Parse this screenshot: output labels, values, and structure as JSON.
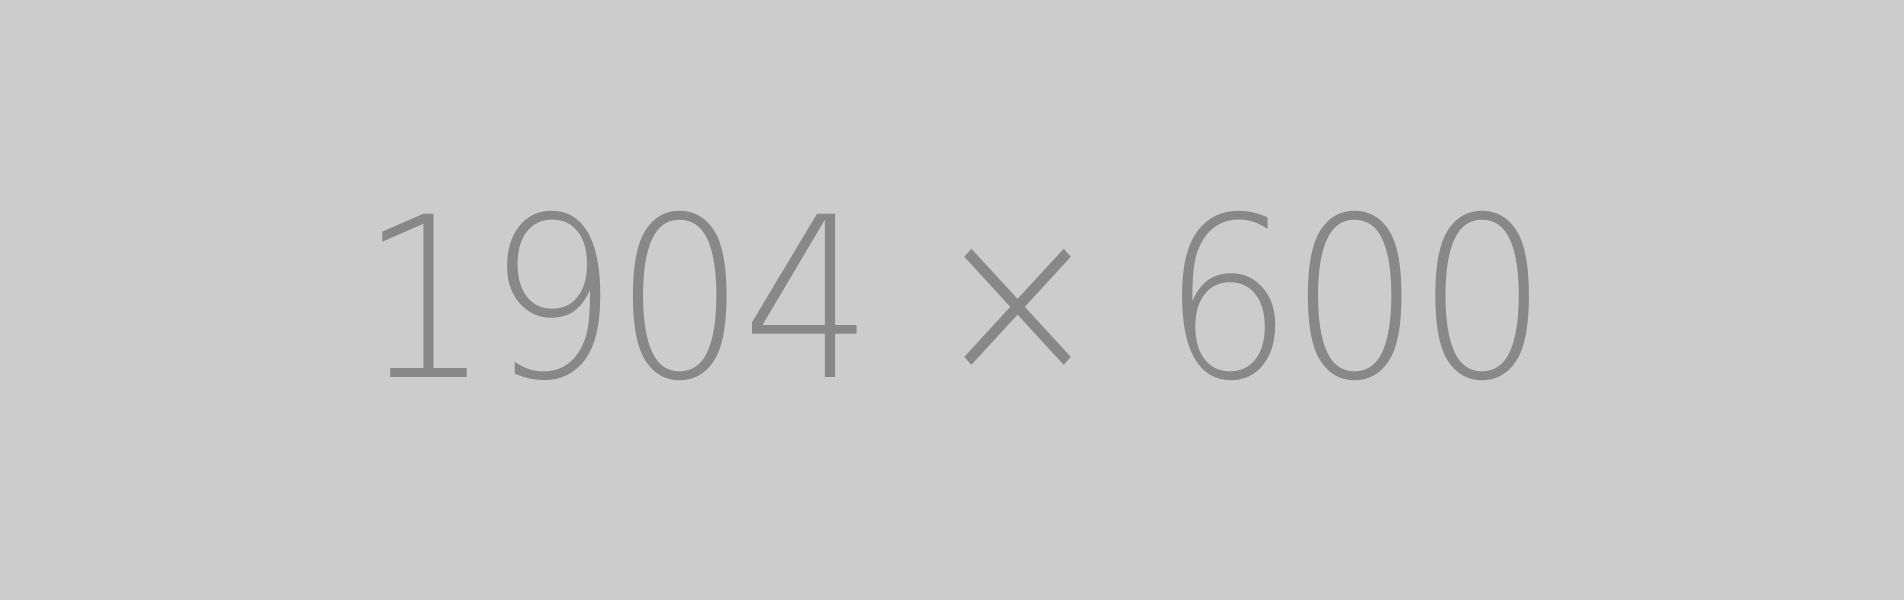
{
  "placeholder": {
    "label": "1904 × 600",
    "background_color": "#cccccc",
    "text_color": "#888888"
  }
}
